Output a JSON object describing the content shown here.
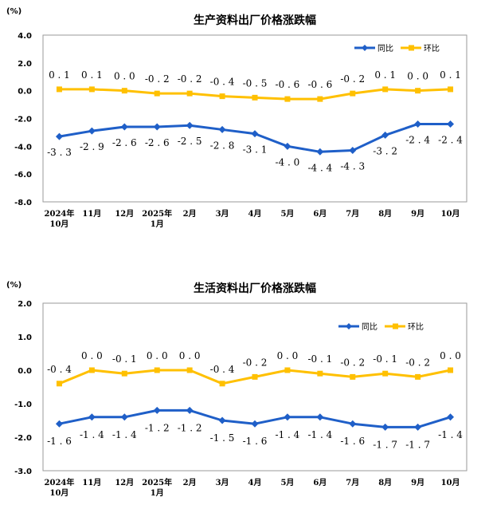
{
  "colors": {
    "yoy": "#1f5fc8",
    "mom": "#ffc000",
    "frame": "#9a9a9a",
    "grid": "#bfbfbf"
  },
  "chart_data": [
    {
      "type": "line",
      "title": "生产资料出厂价格涨跌幅",
      "unit": "(%)",
      "ylim": [
        -8.0,
        4.0
      ],
      "yticks": [
        "4.0",
        "2.0",
        "0.0",
        "-2.0",
        "-4.0",
        "-6.0",
        "-8.0"
      ],
      "ytick_values": [
        4,
        2,
        0,
        -2,
        -4,
        -6,
        -8
      ],
      "categories": [
        [
          "2024年",
          "10月"
        ],
        [
          "11月"
        ],
        [
          "12月"
        ],
        [
          "2025年",
          "1月"
        ],
        [
          "2月"
        ],
        [
          "3月"
        ],
        [
          "4月"
        ],
        [
          "5月"
        ],
        [
          "6月"
        ],
        [
          "7月"
        ],
        [
          "8月"
        ],
        [
          "9月"
        ],
        [
          "10月"
        ]
      ],
      "series": [
        {
          "name": "同比",
          "key": "yoy",
          "values": [
            -3.3,
            -2.9,
            -2.6,
            -2.6,
            -2.5,
            -2.8,
            -3.1,
            -4.0,
            -4.4,
            -4.3,
            -3.2,
            -2.4,
            -2.4
          ],
          "labels": [
            "-3.3",
            "-2.9",
            "-2.6",
            "-2.6",
            "-2.5",
            "-2.8",
            "-3.1",
            "-4.0",
            "-4.4",
            "-4.3",
            "-3.2",
            "-2.4",
            "-2.4"
          ]
        },
        {
          "name": "环比",
          "key": "mom",
          "values": [
            0.1,
            0.1,
            0.0,
            -0.2,
            -0.2,
            -0.4,
            -0.5,
            -0.6,
            -0.6,
            -0.2,
            0.1,
            0.0,
            0.1
          ],
          "labels": [
            "0.1",
            "0.1",
            "0.0",
            "-0.2",
            "-0.2",
            "-0.4",
            "-0.5",
            "-0.6",
            "-0.6",
            "-0.2",
            "0.1",
            "0.0",
            "0.1"
          ]
        }
      ],
      "legend": "top-right"
    },
    {
      "type": "line",
      "title": "生活资料出厂价格涨跌幅",
      "unit": "(%)",
      "ylim": [
        -3.0,
        2.0
      ],
      "yticks": [
        "2.0",
        "1.0",
        "0.0",
        "-1.0",
        "-2.0",
        "-3.0"
      ],
      "ytick_values": [
        2,
        1,
        0,
        -1,
        -2,
        -3
      ],
      "categories": [
        [
          "2024年",
          "10月"
        ],
        [
          "11月"
        ],
        [
          "12月"
        ],
        [
          "2025年",
          "1月"
        ],
        [
          "2月"
        ],
        [
          "3月"
        ],
        [
          "4月"
        ],
        [
          "5月"
        ],
        [
          "6月"
        ],
        [
          "7月"
        ],
        [
          "8月"
        ],
        [
          "9月"
        ],
        [
          "10月"
        ]
      ],
      "series": [
        {
          "name": "同比",
          "key": "yoy",
          "values": [
            -1.6,
            -1.4,
            -1.4,
            -1.2,
            -1.2,
            -1.5,
            -1.6,
            -1.4,
            -1.4,
            -1.6,
            -1.7,
            -1.7,
            -1.4
          ],
          "labels": [
            "-1.6",
            "-1.4",
            "-1.4",
            "-1.2",
            "-1.2",
            "-1.5",
            "-1.6",
            "-1.4",
            "-1.4",
            "-1.6",
            "-1.7",
            "-1.7",
            "-1.4"
          ]
        },
        {
          "name": "环比",
          "key": "mom",
          "values": [
            -0.4,
            0.0,
            -0.1,
            0.0,
            0.0,
            -0.4,
            -0.2,
            0.0,
            -0.1,
            -0.2,
            -0.1,
            -0.2,
            0.0
          ],
          "labels": [
            "-0.4",
            "0.0",
            "-0.1",
            "0.0",
            "0.0",
            "-0.4",
            "-0.2",
            "0.0",
            "-0.1",
            "-0.2",
            "-0.1",
            "-0.2",
            "0.0"
          ]
        }
      ],
      "legend": "top-right"
    }
  ]
}
